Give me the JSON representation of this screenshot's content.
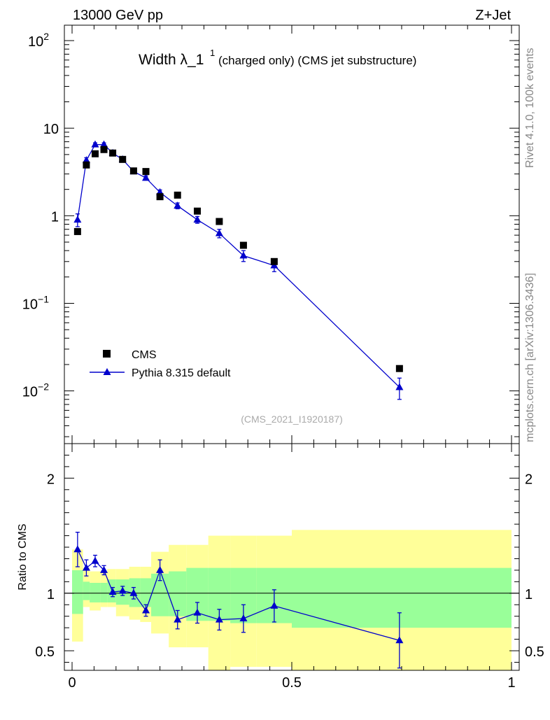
{
  "header": {
    "left": "13000 GeV pp",
    "right": "Z+Jet"
  },
  "side": {
    "rivet": "Rivet 4.1.0,  100k events",
    "mcplots": "mcplots.cern.ch [arXiv:1306.3436]"
  },
  "chart_data": [
    {
      "type": "scatter",
      "title_main": "Width λ_1",
      "title_sup": "1",
      "title_rest": "(charged only) (CMS jet substructure)",
      "watermark": "(CMS_2021_I1920187)",
      "yscale": "log",
      "xlim": [
        0,
        1
      ],
      "ylim": [
        0.0025,
        150
      ],
      "yticks": [
        {
          "value": 100,
          "base": "10",
          "exp": "2"
        },
        {
          "value": 10,
          "base": "10",
          "exp": ""
        },
        {
          "value": 1,
          "base": "1",
          "exp": ""
        },
        {
          "value": 0.1,
          "base": "10",
          "exp": "−1"
        },
        {
          "value": 0.01,
          "base": "10",
          "exp": "−2"
        }
      ],
      "legend": {
        "position": "bottom-left",
        "entries": [
          "CMS",
          "Pythia 8.315 default"
        ]
      },
      "series": [
        {
          "name": "CMS",
          "marker": "square",
          "color": "#000000",
          "x": [
            0.0125,
            0.0325,
            0.0525,
            0.0725,
            0.0925,
            0.115,
            0.14,
            0.168,
            0.2,
            0.24,
            0.285,
            0.335,
            0.39,
            0.46,
            0.745
          ],
          "y": [
            0.66,
            3.8,
            5.1,
            5.7,
            5.2,
            4.4,
            3.25,
            3.2,
            1.65,
            1.72,
            1.13,
            0.86,
            0.46,
            0.3,
            0.018
          ]
        },
        {
          "name": "Pythia 8.315 default",
          "marker": "triangle",
          "color": "#0000cc",
          "x": [
            0.0125,
            0.0325,
            0.0525,
            0.0725,
            0.0925,
            0.115,
            0.14,
            0.168,
            0.2,
            0.24,
            0.285,
            0.335,
            0.39,
            0.46,
            0.745
          ],
          "y": [
            0.9,
            4.3,
            6.5,
            6.5,
            5.2,
            4.4,
            3.2,
            2.7,
            1.85,
            1.3,
            0.9,
            0.63,
            0.35,
            0.27,
            0.011
          ],
          "yerr": [
            0.15,
            0.3,
            0.3,
            0.3,
            0.25,
            0.2,
            0.15,
            0.15,
            0.12,
            0.1,
            0.08,
            0.07,
            0.05,
            0.04,
            0.003
          ]
        }
      ]
    },
    {
      "type": "scatter",
      "ylabel": "Ratio to CMS",
      "xlim": [
        0,
        1
      ],
      "ylim": [
        0.33,
        2.3
      ],
      "yticks": [
        0.5,
        1,
        2
      ],
      "yticklabels": [
        "0.5",
        "1",
        "2"
      ],
      "xticks": [
        0,
        0.5,
        1
      ],
      "xticklabels": [
        "0",
        "0.5",
        "1"
      ],
      "bins": [
        0,
        0.025,
        0.04,
        0.065,
        0.08,
        0.1,
        0.13,
        0.155,
        0.18,
        0.22,
        0.26,
        0.31,
        0.36,
        0.42,
        0.5,
        1.0
      ],
      "band_inner": {
        "color": "#99ff99",
        "low": [
          0.82,
          0.94,
          0.92,
          0.92,
          0.92,
          0.9,
          0.88,
          0.88,
          0.8,
          0.8,
          0.76,
          0.76,
          0.74,
          0.74,
          0.7
        ],
        "high": [
          1.2,
          1.1,
          1.09,
          1.09,
          1.12,
          1.12,
          1.13,
          1.13,
          1.17,
          1.19,
          1.22,
          1.22,
          1.22,
          1.22,
          1.22
        ]
      },
      "band_outer": {
        "color": "#ffff99",
        "low": [
          0.58,
          0.88,
          0.85,
          0.88,
          0.88,
          0.8,
          0.77,
          0.75,
          0.65,
          0.53,
          0.53,
          0.33,
          0.36,
          0.36,
          0.33
        ],
        "high": [
          1.38,
          1.22,
          1.19,
          1.19,
          1.21,
          1.21,
          1.23,
          1.23,
          1.36,
          1.42,
          1.42,
          1.5,
          1.5,
          1.5,
          1.55
        ]
      },
      "ratio": {
        "color": "#0000cc",
        "x": [
          0.0125,
          0.0325,
          0.0525,
          0.0725,
          0.0925,
          0.115,
          0.14,
          0.168,
          0.2,
          0.24,
          0.285,
          0.335,
          0.39,
          0.46,
          0.745
        ],
        "y": [
          1.38,
          1.22,
          1.28,
          1.2,
          1.01,
          1.02,
          1.0,
          0.85,
          1.2,
          0.77,
          0.83,
          0.77,
          0.78,
          0.89,
          0.59
        ],
        "yerr": [
          0.15,
          0.07,
          0.05,
          0.04,
          0.04,
          0.04,
          0.05,
          0.05,
          0.09,
          0.08,
          0.09,
          0.09,
          0.12,
          0.14,
          0.24
        ]
      }
    }
  ]
}
